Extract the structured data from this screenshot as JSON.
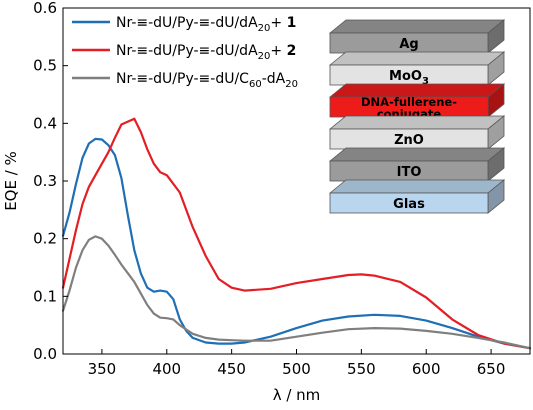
{
  "chart_data": {
    "type": "line",
    "xlabel": "λ / nm",
    "ylabel": "EQE / %",
    "xlim": [
      320,
      680
    ],
    "ylim": [
      0,
      0.6
    ],
    "x_ticks": [
      350,
      400,
      450,
      500,
      550,
      600,
      650
    ],
    "y_ticks": [
      0.0,
      0.1,
      0.2,
      0.3,
      0.4,
      0.5,
      0.6
    ],
    "x_tick_labels": [
      "350",
      "400",
      "450",
      "500",
      "550",
      "600",
      "650"
    ],
    "y_tick_labels": [
      "0.0",
      "0.1",
      "0.2",
      "0.3",
      "0.4",
      "0.5",
      "0.6"
    ],
    "grid": false,
    "legend_placement": "top-left",
    "series": [
      {
        "name": "Nr-≡-dU/Py-≡-dU/dA20+ 1",
        "legend_parts": [
          {
            "text": "Nr-≡-dU/Py-≡-dU/dA",
            "style": "normal"
          },
          {
            "text": "20",
            "style": "sub"
          },
          {
            "text": "+ ",
            "style": "normal"
          },
          {
            "text": "1",
            "style": "bold"
          }
        ],
        "color": "#1f6fb5",
        "x": [
          320,
          325,
          330,
          335,
          340,
          345,
          350,
          355,
          360,
          365,
          370,
          375,
          380,
          385,
          390,
          395,
          400,
          405,
          410,
          415,
          420,
          430,
          440,
          450,
          460,
          480,
          500,
          520,
          540,
          560,
          580,
          600,
          620,
          640,
          660,
          680
        ],
        "y": [
          0.205,
          0.245,
          0.295,
          0.34,
          0.365,
          0.373,
          0.372,
          0.362,
          0.345,
          0.305,
          0.24,
          0.18,
          0.14,
          0.115,
          0.108,
          0.11,
          0.108,
          0.095,
          0.06,
          0.04,
          0.028,
          0.02,
          0.018,
          0.018,
          0.02,
          0.03,
          0.045,
          0.058,
          0.065,
          0.068,
          0.066,
          0.058,
          0.045,
          0.03,
          0.018,
          0.01
        ]
      },
      {
        "name": "Nr-≡-dU/Py-≡-dU/dA20+ 2",
        "legend_parts": [
          {
            "text": "Nr-≡-dU/Py-≡-dU/dA",
            "style": "normal"
          },
          {
            "text": "20",
            "style": "sub"
          },
          {
            "text": "+ ",
            "style": "normal"
          },
          {
            "text": "2",
            "style": "bold"
          }
        ],
        "color": "#e31e24",
        "x": [
          320,
          325,
          330,
          335,
          340,
          345,
          350,
          355,
          360,
          365,
          370,
          375,
          380,
          385,
          390,
          395,
          400,
          410,
          420,
          430,
          440,
          450,
          460,
          480,
          500,
          520,
          540,
          550,
          560,
          580,
          600,
          620,
          640,
          660,
          680
        ],
        "y": [
          0.115,
          0.165,
          0.215,
          0.26,
          0.29,
          0.31,
          0.33,
          0.35,
          0.375,
          0.398,
          0.403,
          0.408,
          0.385,
          0.355,
          0.33,
          0.315,
          0.31,
          0.28,
          0.22,
          0.17,
          0.13,
          0.115,
          0.11,
          0.113,
          0.123,
          0.13,
          0.137,
          0.138,
          0.136,
          0.125,
          0.098,
          0.06,
          0.033,
          0.018,
          0.01
        ]
      },
      {
        "name": "Nr-≡-dU/Py-≡-dU/C60-dA20",
        "legend_parts": [
          {
            "text": "Nr-≡-dU/Py-≡-dU/C",
            "style": "normal"
          },
          {
            "text": "60",
            "style": "sub"
          },
          {
            "text": "-dA",
            "style": "normal"
          },
          {
            "text": "20",
            "style": "sub"
          }
        ],
        "color": "#7f7f7f",
        "x": [
          320,
          325,
          330,
          335,
          340,
          345,
          350,
          355,
          360,
          365,
          370,
          375,
          380,
          385,
          390,
          395,
          400,
          405,
          410,
          420,
          430,
          440,
          450,
          460,
          480,
          500,
          520,
          540,
          560,
          580,
          600,
          620,
          640,
          660,
          680
        ],
        "y": [
          0.075,
          0.11,
          0.15,
          0.18,
          0.198,
          0.204,
          0.2,
          0.188,
          0.172,
          0.155,
          0.14,
          0.125,
          0.105,
          0.085,
          0.07,
          0.063,
          0.062,
          0.06,
          0.05,
          0.035,
          0.028,
          0.025,
          0.024,
          0.023,
          0.023,
          0.03,
          0.037,
          0.043,
          0.045,
          0.044,
          0.04,
          0.035,
          0.028,
          0.02,
          0.01
        ]
      }
    ]
  },
  "device_stack": {
    "layers": [
      {
        "parts": [
          {
            "text": "Ag",
            "style": "normal"
          }
        ],
        "color": "#9b9b9b"
      },
      {
        "parts": [
          {
            "text": "MoO",
            "style": "normal"
          },
          {
            "text": "3",
            "style": "sub"
          }
        ],
        "color": "#e3e3e3"
      },
      {
        "parts": [
          {
            "text": "DNA-fullerene-",
            "style": "normal"
          },
          {
            "text": "conjugate",
            "style": "line2"
          }
        ],
        "color": "#ee1b1b"
      },
      {
        "parts": [
          {
            "text": "ZnO",
            "style": "normal"
          }
        ],
        "color": "#e3e3e3"
      },
      {
        "parts": [
          {
            "text": "ITO",
            "style": "normal"
          }
        ],
        "color": "#9b9b9b"
      },
      {
        "parts": [
          {
            "text": "Glas",
            "style": "normal"
          }
        ],
        "color": "#b9d6ee"
      }
    ]
  }
}
